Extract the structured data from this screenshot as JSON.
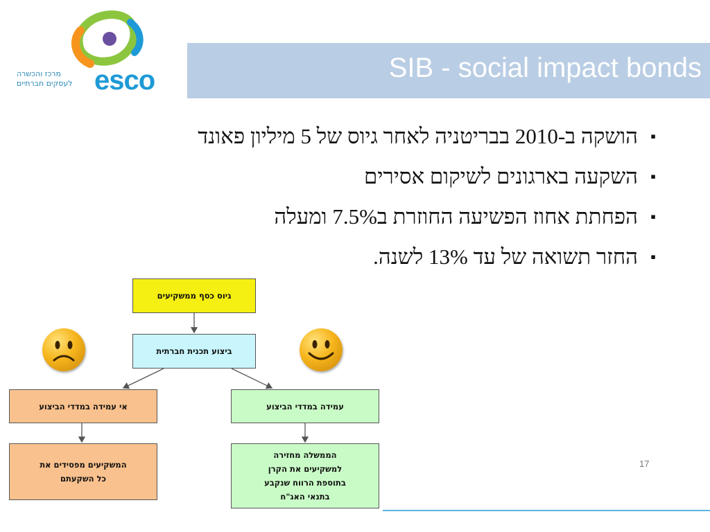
{
  "logo": {
    "word": "esco",
    "subtitle_line1": "מרכז והכשרה",
    "subtitle_line2": "לעסקים חברתיים",
    "colors": {
      "blue": "#1e9ad6",
      "green": "#8cc63f",
      "orange": "#f7941d",
      "purple": "#6b4fa0"
    }
  },
  "slide": {
    "title": "SIB - social impact bonds",
    "page_number": "17",
    "bullet_mark": "▪"
  },
  "bullets": [
    "הושקה ב-2010 בבריטניה לאחר גיוס של 5 מיליון פאונד",
    "השקעה בארגונים לשיקום אסירים",
    "הפחתת אחוז הפשיעה החוזרת ב7.5% ומעלה",
    "החזר תשואה של עד 13% לשנה."
  ],
  "flow": {
    "fundraise": "גיוס כסף ממשקיעים",
    "execution": "ביצוע תכנית חברתית",
    "fail_metrics": "אי עמידה במדדי הביצוע",
    "meet_metrics": "עמידה במדדי הביצוע",
    "investors_lose": "המשקיעים מפסידים את כל השקעתם",
    "government_returns": "הממשלה מחזירה למשקיעים את הקרן בתוספת הרווח שנקבע בתנאי האג\"ח",
    "icons": {
      "sad": "sad-face-icon",
      "happy": "happy-face-icon"
    },
    "colors": {
      "yellow": "#f5ef12",
      "cyan": "#c9f6fc",
      "orange": "#f9c18d",
      "green": "#c9fbc6"
    }
  }
}
